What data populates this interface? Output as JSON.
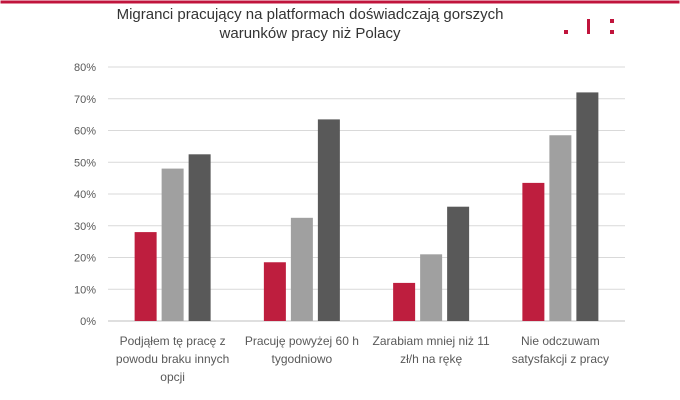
{
  "title_lines": [
    "Migranci pracujący na platformach doświadczają gorszych",
    "warunków pracy niż Polacy"
  ],
  "colors": {
    "accent": "#c0143c",
    "grid": "#d9d9d9",
    "axis_text": "#595959",
    "frame": "#c0143c"
  },
  "logo": {
    "name": "brand-logo-marks"
  },
  "chart_data": {
    "type": "bar",
    "title": "Migranci pracujący na platformach doświadczają gorszych warunków pracy niż Polacy",
    "categories": [
      [
        "Podjąłem tę pracę z",
        "powodu braku innych",
        "opcji"
      ],
      [
        "Pracuję powyżej 60 h",
        "tygodniowo"
      ],
      [
        "Zarabiam mniej niż 11",
        "zł/h na rękę"
      ],
      [
        "Nie odczuwam",
        "satysfakcji z pracy"
      ]
    ],
    "series": [
      {
        "color": "#be1e3e",
        "values": [
          28,
          18.5,
          12,
          43.5
        ]
      },
      {
        "color": "#a0a0a0",
        "values": [
          48,
          32.5,
          21,
          58.5
        ]
      },
      {
        "color": "#595959",
        "values": [
          52.5,
          63.5,
          36,
          72
        ]
      }
    ],
    "ylim": [
      0,
      80
    ],
    "yticks": [
      0,
      10,
      20,
      30,
      40,
      50,
      60,
      70,
      80
    ],
    "ytick_format": "percent",
    "grid": true,
    "legend": "none"
  }
}
